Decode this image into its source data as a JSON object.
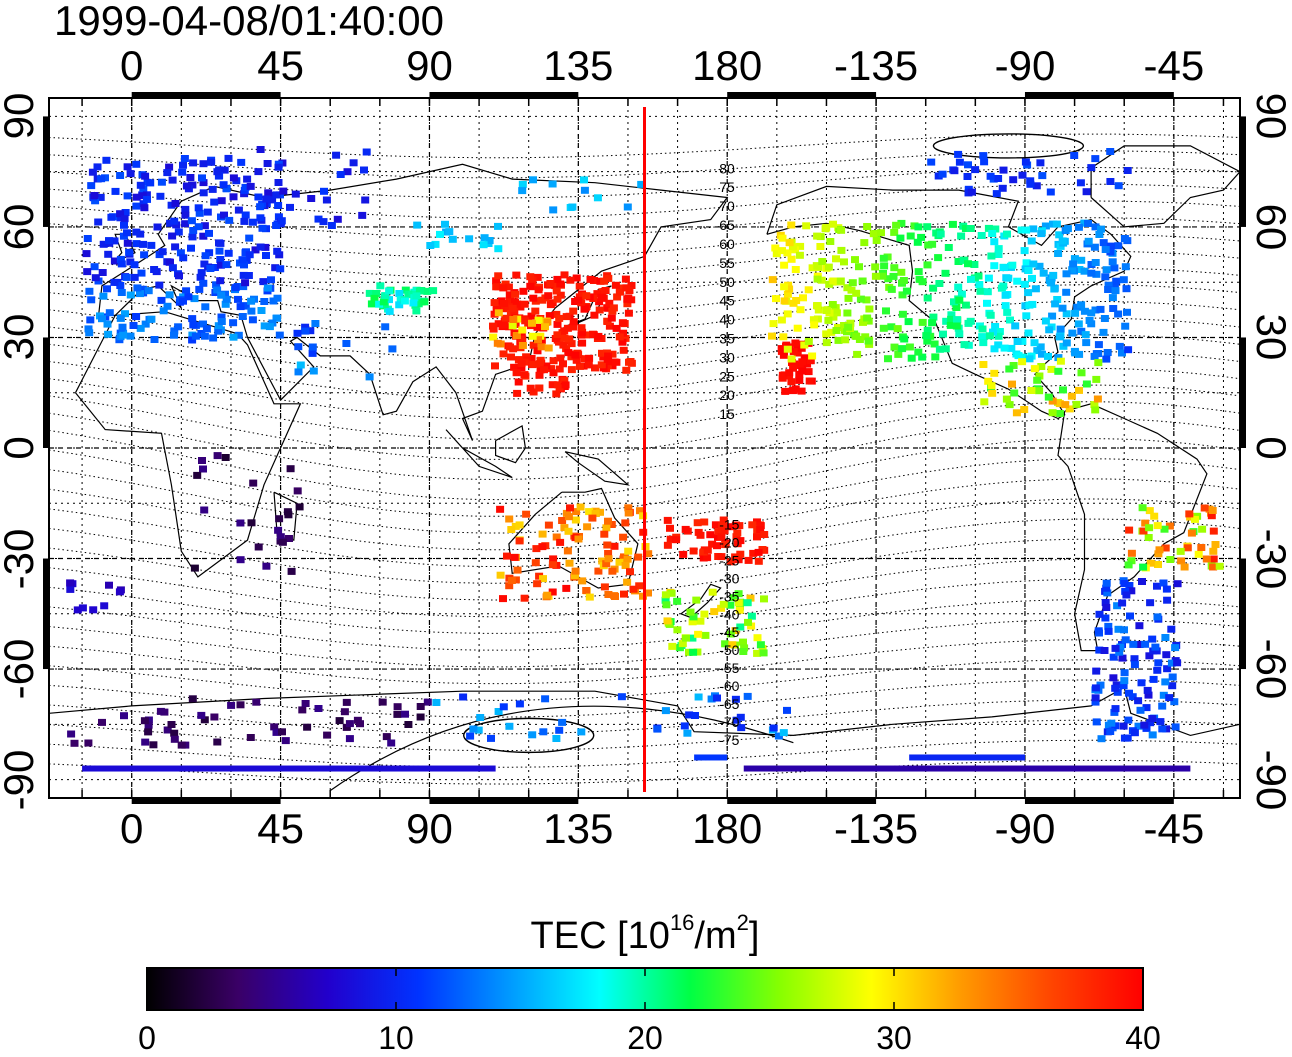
{
  "timestamp": "1999-04-08/01:40:00",
  "map": {
    "lon_range": [
      -25,
      335
    ],
    "lat_range": [
      -95,
      95
    ],
    "grid_step_lon": 15,
    "grid_step_lat": 15,
    "top_lon_ticks": [
      "0",
      "45",
      "90",
      "135",
      "180",
      "-135",
      "-90",
      "-45"
    ],
    "bottom_lon_ticks": [
      "0",
      "45",
      "90",
      "135",
      "180",
      "-135",
      "-90",
      "-45"
    ],
    "left_lat_ticks": [
      "90",
      "60",
      "30",
      "0",
      "-30",
      "-60",
      "-90"
    ],
    "right_lat_ticks": [
      "90",
      "60",
      "30",
      "0",
      "-30",
      "-60",
      "-90"
    ],
    "terminator_lon": 155,
    "terminator_color": "#ff0000",
    "contour_labels": [
      "80",
      "75",
      "70",
      "65",
      "60",
      "55",
      "50",
      "45",
      "40",
      "35",
      "30",
      "25",
      "20",
      "15",
      "-15",
      "-20",
      "-25",
      "-30",
      "-35",
      "-40",
      "-45",
      "-50",
      "-55",
      "-60",
      "-65",
      "-70",
      "-75"
    ],
    "contour_label_lats": [
      80,
      75,
      70,
      65,
      60,
      55,
      50,
      45,
      40,
      35,
      30,
      25,
      20,
      15,
      -15,
      -20,
      -25,
      -30,
      -35,
      -40,
      -45,
      -50,
      -55,
      -60,
      -65,
      -70,
      -75
    ]
  },
  "colorbar": {
    "title_main": "TEC  [10",
    "title_exp1": "16",
    "title_mid": "/m",
    "title_exp2": "2",
    "title_end": "]",
    "min": 0,
    "max": 40,
    "tick_labels": [
      "0",
      "10",
      "20",
      "30",
      "40"
    ],
    "stops": [
      "#000000",
      "#3a0066",
      "#2200cc",
      "#0033ff",
      "#0099ff",
      "#00ffff",
      "#00ff44",
      "#88ff00",
      "#ffff00",
      "#ff9900",
      "#ff4400",
      "#ff0000"
    ]
  },
  "tec_regions": [
    {
      "name": "europe",
      "lon": [
        -15,
        45
      ],
      "lat": [
        30,
        80
      ],
      "tec": [
        5,
        13
      ],
      "n": 320
    },
    {
      "name": "russia-north",
      "lon": [
        30,
        70
      ],
      "lat": [
        60,
        82
      ],
      "tec": [
        8,
        11
      ],
      "n": 30
    },
    {
      "name": "central-asia",
      "lon": [
        70,
        90
      ],
      "lat": [
        38,
        45
      ],
      "tec": [
        17,
        22
      ],
      "n": 40
    },
    {
      "name": "siberia",
      "lon": [
        85,
        110
      ],
      "lat": [
        55,
        62
      ],
      "tec": [
        15,
        18
      ],
      "n": 15
    },
    {
      "name": "east-siberia",
      "lon": [
        115,
        160
      ],
      "lat": [
        65,
        75
      ],
      "tec": [
        14,
        17
      ],
      "n": 12
    },
    {
      "name": "japan-china",
      "lon": [
        108,
        150
      ],
      "lat": [
        22,
        48
      ],
      "tec": [
        38,
        40
      ],
      "n": 240
    },
    {
      "name": "korea-coast",
      "lon": [
        108,
        125
      ],
      "lat": [
        28,
        38
      ],
      "tec": [
        28,
        34
      ],
      "n": 20
    },
    {
      "name": "taiwan",
      "lon": [
        114,
        130
      ],
      "lat": [
        15,
        24
      ],
      "tec": [
        38,
        40
      ],
      "n": 30
    },
    {
      "name": "hawaii",
      "lon": [
        195,
        205
      ],
      "lat": [
        15,
        30
      ],
      "tec": [
        39,
        40
      ],
      "n": 40
    },
    {
      "name": "north-america",
      "lon": [
        192,
        300
      ],
      "lat": [
        25,
        62
      ],
      "tec": [
        12,
        30
      ],
      "n": 420
    },
    {
      "name": "canada-arctic",
      "lon": [
        240,
        300
      ],
      "lat": [
        70,
        82
      ],
      "tec": [
        9,
        12
      ],
      "n": 40
    },
    {
      "name": "central-america",
      "lon": [
        255,
        295
      ],
      "lat": [
        10,
        25
      ],
      "tec": [
        22,
        33
      ],
      "n": 45
    },
    {
      "name": "australia",
      "lon": [
        110,
        155
      ],
      "lat": [
        -40,
        -15
      ],
      "tec": [
        30,
        40
      ],
      "n": 110
    },
    {
      "name": "sw-pacific",
      "lon": [
        160,
        190
      ],
      "lat": [
        -30,
        -18
      ],
      "tec": [
        38,
        40
      ],
      "n": 60
    },
    {
      "name": "new-zealand",
      "lon": [
        160,
        190
      ],
      "lat": [
        -55,
        -38
      ],
      "tec": [
        20,
        32
      ],
      "n": 60
    },
    {
      "name": "south-america-n",
      "lon": [
        300,
        328
      ],
      "lat": [
        -32,
        -15
      ],
      "tec": [
        22,
        40
      ],
      "n": 50
    },
    {
      "name": "south-america-s",
      "lon": [
        290,
        315
      ],
      "lat": [
        -78,
        -35
      ],
      "tec": [
        8,
        14
      ],
      "n": 120
    },
    {
      "name": "africa",
      "lon": [
        15,
        50
      ],
      "lat": [
        -35,
        0
      ],
      "tec": [
        1,
        5
      ],
      "n": 25
    },
    {
      "name": "antarctic-w",
      "lon": [
        -20,
        90
      ],
      "lat": [
        -80,
        -67
      ],
      "tec": [
        2,
        5
      ],
      "n": 55
    },
    {
      "name": "antarctic-e",
      "lon": [
        90,
        200
      ],
      "lat": [
        -78,
        -66
      ],
      "tec": [
        10,
        16
      ],
      "n": 40
    },
    {
      "name": "south-atlantic",
      "lon": [
        -20,
        0
      ],
      "lat": [
        -45,
        -35
      ],
      "tec": [
        6,
        9
      ],
      "n": 10
    },
    {
      "name": "india-gulf",
      "lon": [
        45,
        80
      ],
      "lat": [
        15,
        35
      ],
      "tec": [
        10,
        16
      ],
      "n": 15
    }
  ],
  "tec_bands": [
    {
      "lat": -87,
      "lon": [
        -15,
        110
      ],
      "tec": 8
    },
    {
      "lat": -87,
      "lon": [
        185,
        320
      ],
      "tec": 6
    },
    {
      "lat": -84,
      "lon": [
        170,
        180
      ],
      "tec": 11
    },
    {
      "lat": -84,
      "lon": [
        235,
        270
      ],
      "tec": 10
    }
  ]
}
